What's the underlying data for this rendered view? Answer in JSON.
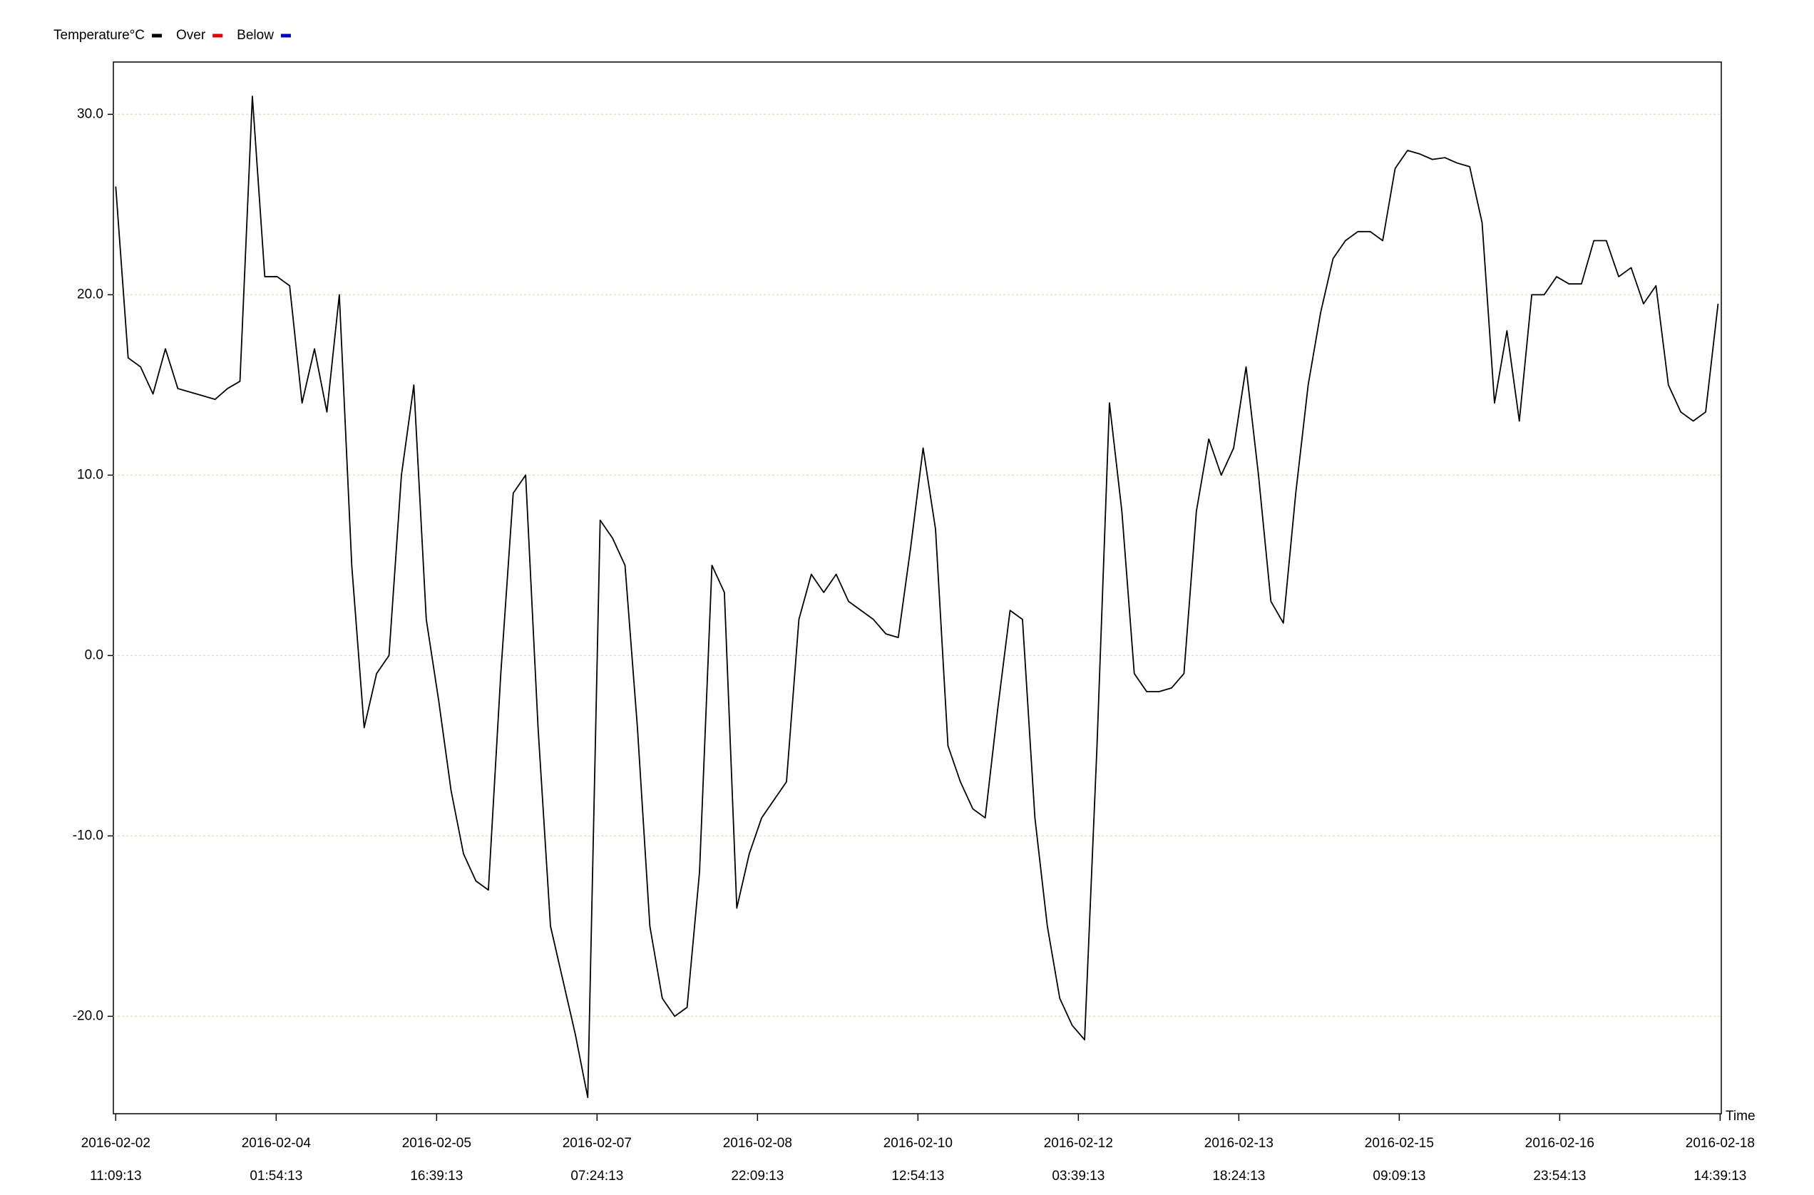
{
  "chart_data": {
    "type": "line",
    "x_label": "Time",
    "legend": [
      {
        "name": "Temperature°C",
        "color": "#000000"
      },
      {
        "name": "Over",
        "color": "#e00000"
      },
      {
        "name": "Below",
        "color": "#0000c0"
      }
    ],
    "legend_position": "top-left",
    "grid": true,
    "xlim": [
      "2016-02-02 10:35:00",
      "2016-02-18 14:56:00"
    ],
    "ylim": [
      -25.4,
      32.9
    ],
    "yticks": [
      {
        "value": -20,
        "label": "-20.0"
      },
      {
        "value": -10,
        "label": "-10.0"
      },
      {
        "value": 0,
        "label": "0.0"
      },
      {
        "value": 10,
        "label": "10.0"
      },
      {
        "value": 20,
        "label": "20.0"
      },
      {
        "value": 30,
        "label": "30.0"
      }
    ],
    "xticks": [
      {
        "value": "2016-02-02 11:09:13",
        "label": [
          "2016-02-02",
          "11:09:13"
        ]
      },
      {
        "value": "2016-02-04 01:54:13",
        "label": [
          "2016-02-04",
          "01:54:13"
        ]
      },
      {
        "value": "2016-02-05 16:39:13",
        "label": [
          "2016-02-05",
          "16:39:13"
        ]
      },
      {
        "value": "2016-02-07 07:24:13",
        "label": [
          "2016-02-07",
          "07:24:13"
        ]
      },
      {
        "value": "2016-02-08 22:09:13",
        "label": [
          "2016-02-08",
          "22:09:13"
        ]
      },
      {
        "value": "2016-02-10 12:54:13",
        "label": [
          "2016-02-10",
          "12:54:13"
        ]
      },
      {
        "value": "2016-02-12 03:39:13",
        "label": [
          "2016-02-12",
          "03:39:13"
        ]
      },
      {
        "value": "2016-02-13 18:24:13",
        "label": [
          "2016-02-13",
          "18:24:13"
        ]
      },
      {
        "value": "2016-02-15 09:09:13",
        "label": [
          "2016-02-15",
          "09:09:13"
        ]
      },
      {
        "value": "2016-02-16 23:54:13",
        "label": [
          "2016-02-16",
          "23:54:13"
        ]
      },
      {
        "value": "2016-02-18 14:39:13",
        "label": [
          "2016-02-18",
          "14:39:13"
        ]
      }
    ],
    "x": [
      "2016-02-02 11:09:13",
      "2016-02-02 14:09:13",
      "2016-02-02 17:09:13",
      "2016-02-02 20:09:13",
      "2016-02-02 23:09:13",
      "2016-02-03 02:09:13",
      "2016-02-03 05:09:13",
      "2016-02-03 08:09:13",
      "2016-02-03 11:09:13",
      "2016-02-03 14:09:13",
      "2016-02-03 17:09:13",
      "2016-02-03 20:09:13",
      "2016-02-03 23:09:13",
      "2016-02-04 02:09:13",
      "2016-02-04 05:09:13",
      "2016-02-04 08:09:13",
      "2016-02-04 11:09:13",
      "2016-02-04 14:09:13",
      "2016-02-04 17:09:13",
      "2016-02-04 20:09:13",
      "2016-02-04 23:09:13",
      "2016-02-05 02:09:13",
      "2016-02-05 05:09:13",
      "2016-02-05 08:09:13",
      "2016-02-05 11:09:13",
      "2016-02-05 14:09:13",
      "2016-02-05 17:09:13",
      "2016-02-05 20:09:13",
      "2016-02-05 23:09:13",
      "2016-02-06 02:09:13",
      "2016-02-06 05:09:13",
      "2016-02-06 08:09:13",
      "2016-02-06 11:09:13",
      "2016-02-06 14:09:13",
      "2016-02-06 17:09:13",
      "2016-02-06 20:09:13",
      "2016-02-06 23:09:13",
      "2016-02-07 02:09:13",
      "2016-02-07 05:09:13",
      "2016-02-07 08:09:13",
      "2016-02-07 11:09:13",
      "2016-02-07 14:09:13",
      "2016-02-07 17:09:13",
      "2016-02-07 20:09:13",
      "2016-02-07 23:09:13",
      "2016-02-08 02:09:13",
      "2016-02-08 05:09:13",
      "2016-02-08 08:09:13",
      "2016-02-08 11:09:13",
      "2016-02-08 14:09:13",
      "2016-02-08 17:09:13",
      "2016-02-08 20:09:13",
      "2016-02-08 23:09:13",
      "2016-02-09 02:09:13",
      "2016-02-09 05:09:13",
      "2016-02-09 08:09:13",
      "2016-02-09 11:09:13",
      "2016-02-09 14:09:13",
      "2016-02-09 17:09:13",
      "2016-02-09 20:09:13",
      "2016-02-09 23:09:13",
      "2016-02-10 02:09:13",
      "2016-02-10 05:09:13",
      "2016-02-10 08:09:13",
      "2016-02-10 11:09:13",
      "2016-02-10 14:09:13",
      "2016-02-10 17:09:13",
      "2016-02-10 20:09:13",
      "2016-02-10 23:09:13",
      "2016-02-11 02:09:13",
      "2016-02-11 05:09:13",
      "2016-02-11 08:09:13",
      "2016-02-11 11:09:13",
      "2016-02-11 14:09:13",
      "2016-02-11 17:09:13",
      "2016-02-11 20:09:13",
      "2016-02-11 23:09:13",
      "2016-02-12 02:09:13",
      "2016-02-12 05:09:13",
      "2016-02-12 08:09:13",
      "2016-02-12 11:09:13",
      "2016-02-12 14:09:13",
      "2016-02-12 17:09:13",
      "2016-02-12 20:09:13",
      "2016-02-12 23:09:13",
      "2016-02-13 02:09:13",
      "2016-02-13 05:09:13",
      "2016-02-13 08:09:13",
      "2016-02-13 11:09:13",
      "2016-02-13 14:09:13",
      "2016-02-13 17:09:13",
      "2016-02-13 20:09:13",
      "2016-02-13 23:09:13",
      "2016-02-14 02:09:13",
      "2016-02-14 05:09:13",
      "2016-02-14 08:09:13",
      "2016-02-14 11:09:13",
      "2016-02-14 14:09:13",
      "2016-02-14 17:09:13",
      "2016-02-14 20:09:13",
      "2016-02-14 23:09:13",
      "2016-02-15 02:09:13",
      "2016-02-15 05:09:13",
      "2016-02-15 08:09:13",
      "2016-02-15 11:09:13",
      "2016-02-15 14:09:13",
      "2016-02-15 17:09:13",
      "2016-02-15 20:09:13",
      "2016-02-15 23:09:13",
      "2016-02-16 02:09:13",
      "2016-02-16 05:09:13",
      "2016-02-16 08:09:13",
      "2016-02-16 11:09:13",
      "2016-02-16 14:09:13",
      "2016-02-16 17:09:13",
      "2016-02-16 20:09:13",
      "2016-02-16 23:09:13",
      "2016-02-17 02:09:13",
      "2016-02-17 05:09:13",
      "2016-02-17 08:09:13",
      "2016-02-17 11:09:13",
      "2016-02-17 14:09:13",
      "2016-02-17 17:09:13",
      "2016-02-17 20:09:13",
      "2016-02-17 23:09:13",
      "2016-02-18 02:09:13",
      "2016-02-18 05:09:13",
      "2016-02-18 08:09:13",
      "2016-02-18 11:09:13",
      "2016-02-18 14:09:13"
    ],
    "series": [
      {
        "name": "Temperature°C",
        "color": "#000000",
        "values": [
          26,
          16.5,
          16,
          14.5,
          17,
          14.8,
          14.6,
          14.4,
          14.2,
          14.8,
          15.2,
          31,
          21,
          21,
          20.5,
          14,
          17,
          13.5,
          20,
          5,
          -4,
          -1,
          0,
          10,
          15,
          2,
          -2.5,
          -7.5,
          -11,
          -12.5,
          -13,
          -1,
          9,
          10,
          -4,
          -15,
          -18,
          -21,
          -24.5,
          7.5,
          6.5,
          5,
          -4,
          -15,
          -19,
          -20,
          -19.5,
          -12,
          5,
          3.5,
          -14,
          -11,
          -9,
          -8,
          -7,
          2,
          4.5,
          3.5,
          4.5,
          3,
          2.5,
          2,
          1.2,
          1,
          6,
          11.5,
          7,
          -5,
          -7,
          -8.5,
          -9,
          -3,
          2.5,
          2,
          -9,
          -15,
          -19,
          -20.5,
          -21.3,
          -5,
          14,
          8,
          -1,
          -2,
          -2,
          -1.8,
          -1,
          8,
          12,
          10,
          11.5,
          16,
          10,
          3,
          1.8,
          9,
          15,
          19,
          22,
          23,
          23.5,
          23.5,
          23,
          27,
          28,
          27.8,
          27.5,
          27.6,
          27.3,
          27.1,
          24,
          14,
          18,
          13,
          20,
          20,
          21,
          20.6,
          20.6,
          23,
          23,
          21,
          21.5,
          19.5,
          20.5,
          15,
          13.5,
          13,
          13.5,
          19.5
        ]
      }
    ]
  }
}
